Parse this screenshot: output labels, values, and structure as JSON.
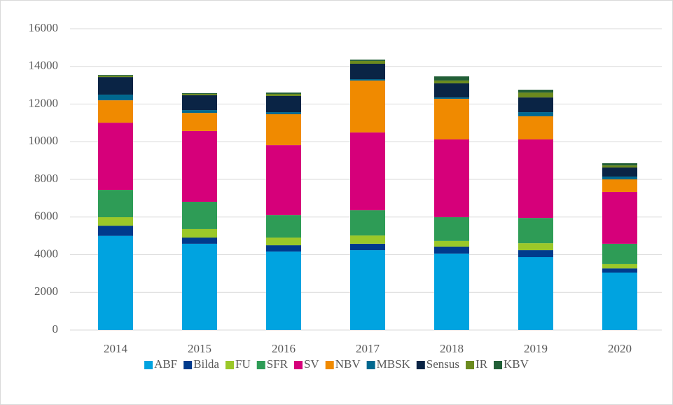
{
  "chart_data": {
    "type": "bar",
    "stacked": true,
    "categories": [
      "2014",
      "2015",
      "2016",
      "2017",
      "2018",
      "2019",
      "2020"
    ],
    "series": [
      {
        "name": "ABF",
        "color": "#00a3e0",
        "values": [
          5000,
          4580,
          4170,
          4240,
          4060,
          3870,
          3050
        ]
      },
      {
        "name": "Bilda",
        "color": "#003a8c",
        "values": [
          540,
          330,
          330,
          340,
          370,
          370,
          220
        ]
      },
      {
        "name": "FU",
        "color": "#9bc829",
        "values": [
          450,
          450,
          410,
          440,
          300,
          370,
          230
        ]
      },
      {
        "name": "SFR",
        "color": "#2e9c56",
        "values": [
          1450,
          1450,
          1190,
          1340,
          1260,
          1340,
          1080
        ]
      },
      {
        "name": "SV",
        "color": "#d6007a",
        "values": [
          3570,
          3760,
          3720,
          4130,
          4130,
          4170,
          2750
        ]
      },
      {
        "name": "NBV",
        "color": "#f08a00",
        "values": [
          1190,
          960,
          1640,
          2760,
          2160,
          1230,
          670
        ]
      },
      {
        "name": "MBSK",
        "color": "#00688f",
        "values": [
          300,
          150,
          110,
          70,
          70,
          220,
          150
        ]
      },
      {
        "name": "Sensus",
        "color": "#0a2445",
        "values": [
          930,
          790,
          860,
          820,
          750,
          780,
          480
        ]
      },
      {
        "name": "IR",
        "color": "#6b8a1e",
        "values": [
          70,
          70,
          110,
          150,
          150,
          260,
          110
        ]
      },
      {
        "name": "KBV",
        "color": "#215e36",
        "values": [
          40,
          40,
          70,
          70,
          220,
          150,
          120
        ]
      }
    ],
    "ylim": [
      0,
      16000
    ],
    "yticks": [
      0,
      2000,
      4000,
      6000,
      8000,
      10000,
      12000,
      14000,
      16000
    ],
    "grid": true,
    "legend": "bottom"
  }
}
